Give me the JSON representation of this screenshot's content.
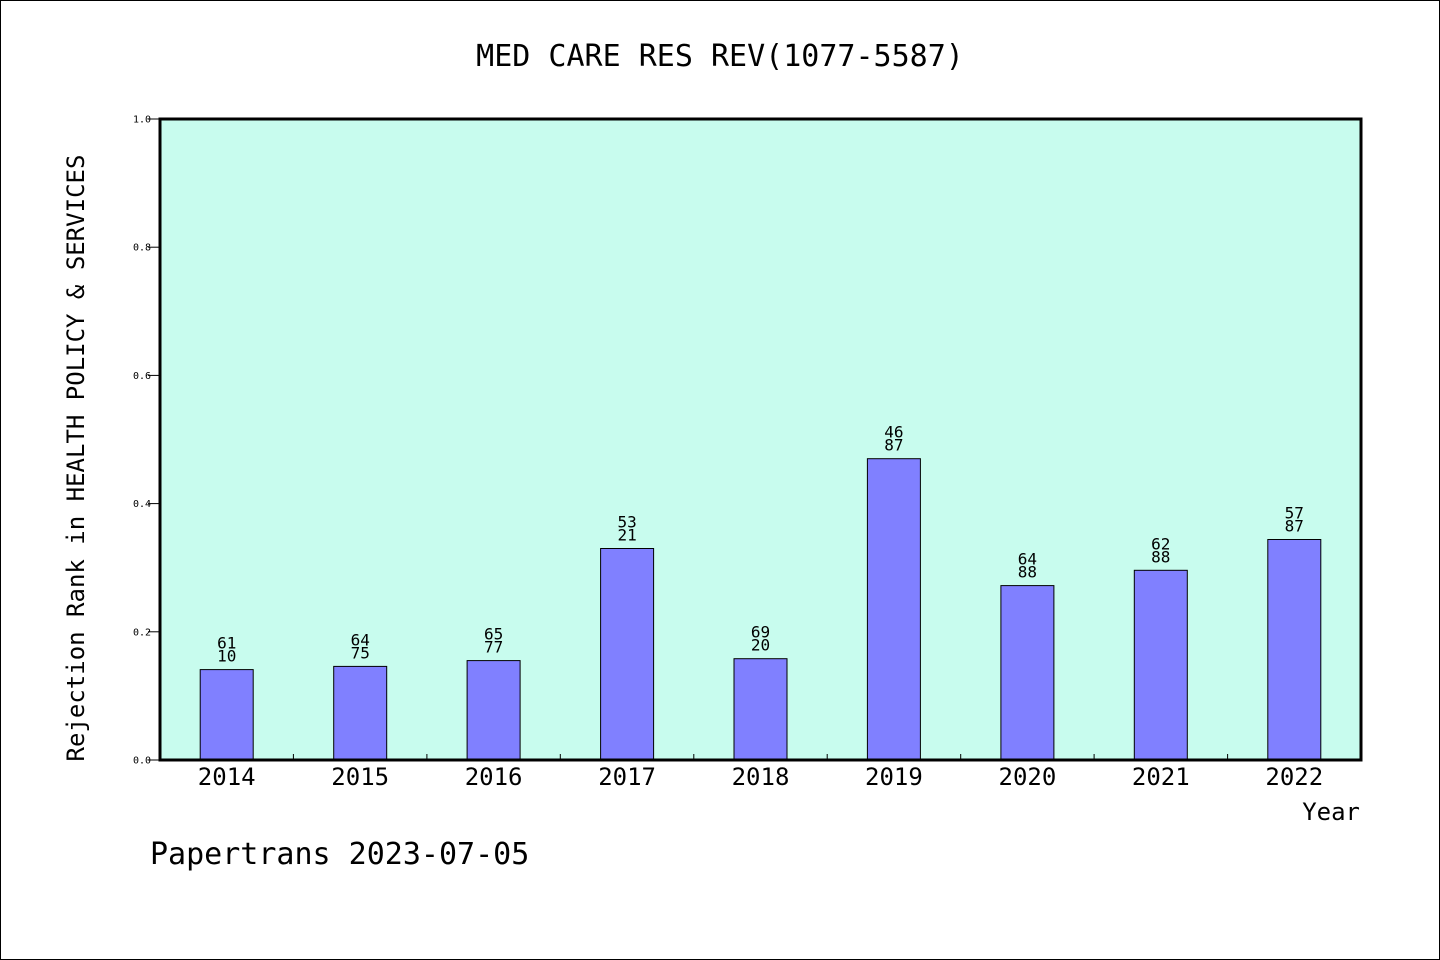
{
  "colors": {
    "background": "#ffffff",
    "plot_background": "#c8fcee",
    "bar_fill": "#8080ff",
    "bar_stroke": "#000000",
    "frame": "#000000",
    "text": "#000000"
  },
  "footer": {
    "source_label": "Papertrans 2023-07-05"
  },
  "chart_data": {
    "type": "bar",
    "title": "MED CARE RES REV(1077-5587)",
    "xlabel": "Year",
    "ylabel": "Rejection Rank in HEALTH POLICY & SERVICES",
    "ylim": [
      0,
      1.0
    ],
    "yticks": [
      "0.0",
      "0.2",
      "0.4",
      "0.6",
      "0.8",
      "1.0"
    ],
    "grid": false,
    "legend": "none",
    "categories": [
      "2014",
      "2015",
      "2016",
      "2017",
      "2018",
      "2019",
      "2020",
      "2021",
      "2022"
    ],
    "values": [
      0.141,
      0.146,
      0.155,
      0.33,
      0.158,
      0.47,
      0.272,
      0.296,
      0.344
    ],
    "data_labels": [
      [
        "61",
        "10"
      ],
      [
        "64",
        "75"
      ],
      [
        "65",
        "77"
      ],
      [
        "53",
        "21"
      ],
      [
        "69",
        "20"
      ],
      [
        "46",
        "87"
      ],
      [
        "64",
        "88"
      ],
      [
        "62",
        "88"
      ],
      [
        "57",
        "87"
      ]
    ]
  }
}
